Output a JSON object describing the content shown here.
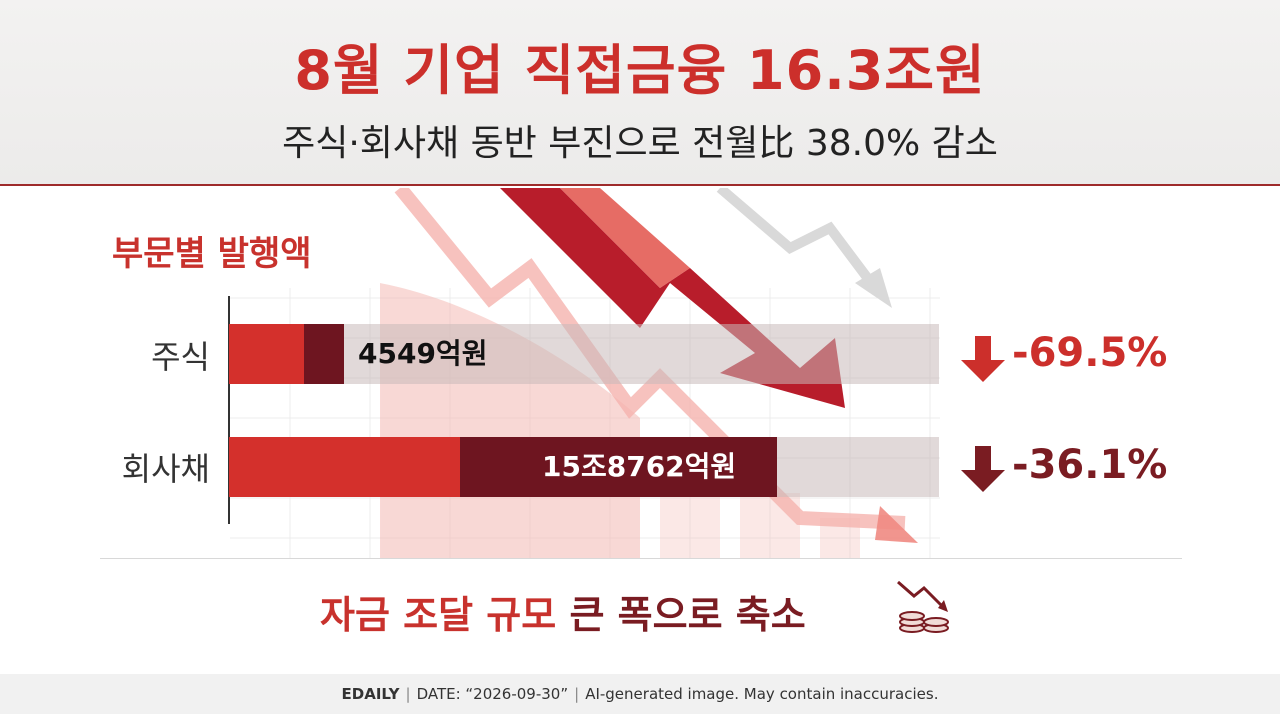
{
  "header": {
    "title": "8월 기업 직접금융 16.3조원",
    "subtitle": "주식·회사채 동반 부진으로 전월比 38.0% 감소"
  },
  "chart_data": {
    "type": "bar",
    "orientation": "horizontal",
    "title": "부문별 발행액",
    "categories": [
      "주식",
      "회사채"
    ],
    "values": [
      4549,
      158762
    ],
    "value_labels": [
      "4549억원",
      "15조8762억원"
    ],
    "unit": "억원",
    "changes": [
      "-69.5%",
      "-36.1%"
    ],
    "colors": {
      "accent_red": "#d4302c",
      "dark_red": "#6e1520",
      "stock_change": "#cc2f2b",
      "bond_change": "#7a1c22"
    }
  },
  "conclusion": {
    "part1": "자금 조달 규모",
    "part2": "큰 폭으로 축소",
    "icon": "coins-down-icon"
  },
  "footer": {
    "brand": "EDAILY",
    "date": "DATE: “2026-09-30”",
    "disclaimer": "AI-generated image. May contain inaccuracies."
  }
}
